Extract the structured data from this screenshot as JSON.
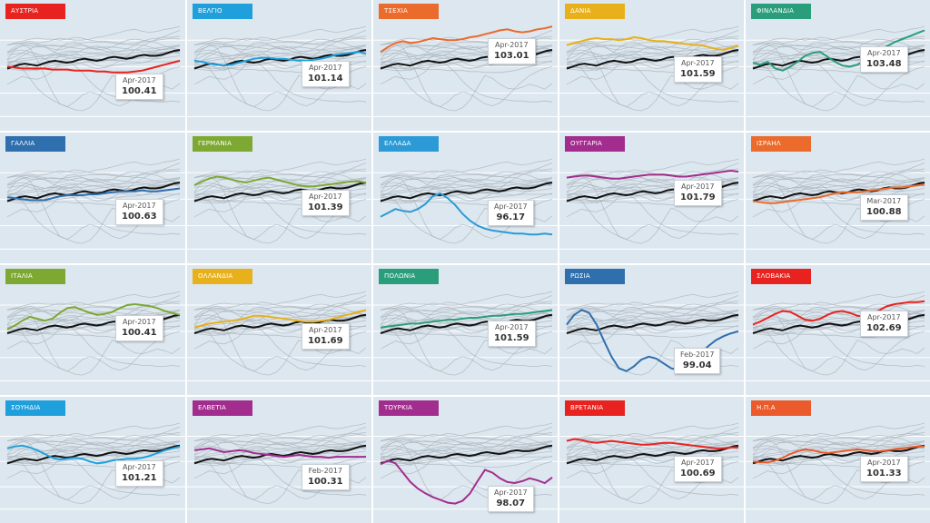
{
  "chart_data": {
    "type": "line",
    "layout": "small-multiples",
    "colors": {
      "background": "#dde7ef",
      "gridline": "#ffffff",
      "reference_line": "#111111",
      "context_lines": "#a9b3bb"
    },
    "grid": true,
    "ylim": [
      94,
      104
    ],
    "reference_series": [
      99.6,
      99.8,
      100.0,
      100.1,
      100.0,
      99.9,
      100.1,
      100.3,
      100.4,
      100.3,
      100.2,
      100.3,
      100.5,
      100.6,
      100.5,
      100.4,
      100.5,
      100.7,
      100.8,
      100.7,
      100.6,
      100.7,
      100.9,
      101.0,
      100.9,
      100.9,
      101.0,
      101.2,
      101.4,
      101.5
    ],
    "panels": [
      {
        "country": "ΑΥΣΤΡΙΑ",
        "color": "#e8231f",
        "tooltip_date": "Apr-2017",
        "tooltip_value": "100.41",
        "values": [
          99.8,
          99.7,
          99.6,
          99.6,
          99.6,
          99.6,
          99.5,
          99.5,
          99.5,
          99.4,
          99.4,
          99.4,
          99.3,
          99.3,
          99.2,
          99.2,
          99.2,
          99.3,
          99.4,
          99.6,
          99.8,
          100.0,
          100.2,
          100.4
        ]
      },
      {
        "country": "ΒΕΛΓΙΟ",
        "color": "#1fa0dc",
        "tooltip_date": "Apr-2017",
        "tooltip_value": "101.14",
        "values": [
          100.4,
          100.3,
          100.1,
          100.0,
          99.9,
          100.0,
          100.2,
          100.4,
          100.6,
          100.7,
          100.7,
          100.6,
          100.6,
          100.5,
          100.4,
          100.4,
          100.5,
          100.6,
          100.8,
          101.0,
          101.1,
          101.2,
          101.3,
          101.1
        ]
      },
      {
        "country": "ΤΣΕΧΙΑ",
        "color": "#ea6b2c",
        "tooltip_date": "Apr-2017",
        "tooltip_value": "103.01",
        "values": [
          101.3,
          101.8,
          102.2,
          102.4,
          102.2,
          102.3,
          102.5,
          102.7,
          102.6,
          102.5,
          102.5,
          102.6,
          102.8,
          102.9,
          103.1,
          103.3,
          103.5,
          103.6,
          103.4,
          103.3,
          103.4,
          103.6,
          103.7,
          103.9
        ]
      },
      {
        "country": "ΔΑΝΙΑ",
        "color": "#e8b11b",
        "tooltip_date": "Apr-2017",
        "tooltip_value": "101.59",
        "values": [
          102.0,
          102.2,
          102.4,
          102.6,
          102.7,
          102.6,
          102.6,
          102.5,
          102.6,
          102.8,
          102.7,
          102.5,
          102.4,
          102.4,
          102.3,
          102.2,
          102.1,
          102.0,
          102.0,
          101.8,
          101.6,
          101.5,
          101.7,
          101.9
        ]
      },
      {
        "country": "ΦΙΝΛΑΝΔΙΑ",
        "color": "#2a9d7a",
        "tooltip_date": "Apr-2017",
        "tooltip_value": "103.48",
        "values": [
          100.2,
          100.0,
          100.3,
          99.6,
          99.4,
          99.8,
          100.3,
          100.9,
          101.2,
          101.3,
          100.8,
          100.3,
          99.9,
          99.8,
          100.0,
          100.4,
          100.9,
          101.5,
          101.9,
          102.3,
          102.6,
          102.9,
          103.2,
          103.5
        ]
      },
      {
        "country": "ΓΑΛΛΙΑ",
        "color": "#2f6fad",
        "tooltip_date": "Apr-2017",
        "tooltip_value": "100.63",
        "values": [
          100.0,
          99.9,
          99.8,
          99.7,
          99.7,
          99.7,
          99.9,
          100.1,
          100.2,
          100.2,
          100.2,
          100.3,
          100.3,
          100.4,
          100.5,
          100.6,
          100.6,
          100.6,
          100.7,
          100.6,
          100.6,
          100.7,
          100.8,
          100.9
        ]
      },
      {
        "country": "ΓΕΡΜΑΝΙΑ",
        "color": "#7da832",
        "tooltip_date": "Apr-2017",
        "tooltip_value": "101.39",
        "values": [
          101.2,
          101.6,
          101.9,
          102.1,
          102.0,
          101.8,
          101.6,
          101.5,
          101.7,
          101.9,
          102.0,
          101.8,
          101.6,
          101.4,
          101.2,
          101.1,
          101.1,
          101.2,
          101.3,
          101.4,
          101.5,
          101.6,
          101.6,
          101.5
        ]
      },
      {
        "country": "ΕΛΛΑΔΑ",
        "color": "#2b9ad6",
        "tooltip_date": "Apr-2017",
        "tooltip_value": "96.17",
        "values": [
          98.0,
          98.4,
          98.8,
          98.6,
          98.5,
          98.8,
          99.3,
          100.1,
          100.4,
          99.9,
          99.2,
          98.3,
          97.6,
          97.1,
          96.8,
          96.6,
          96.5,
          96.4,
          96.3,
          96.3,
          96.2,
          96.2,
          96.3,
          96.2
        ]
      },
      {
        "country": "ΟΥΓΓΑΡΙΑ",
        "color": "#a22d8e",
        "tooltip_date": "Apr-2017",
        "tooltip_value": "101.79",
        "values": [
          102.0,
          102.1,
          102.2,
          102.2,
          102.1,
          102.0,
          101.9,
          101.9,
          102.0,
          102.1,
          102.2,
          102.3,
          102.3,
          102.3,
          102.2,
          102.1,
          102.1,
          102.2,
          102.3,
          102.4,
          102.5,
          102.6,
          102.7,
          102.6
        ]
      },
      {
        "country": "ΙΣΡΑΗΛ",
        "color": "#ea6b2c",
        "tooltip_date": "Mar-2017",
        "tooltip_value": "100.88",
        "values": [
          99.6,
          99.5,
          99.4,
          99.4,
          99.5,
          99.6,
          99.7,
          99.8,
          99.9,
          100.0,
          100.2,
          100.4,
          100.5,
          100.5,
          100.5,
          100.6,
          100.7,
          100.8,
          100.9,
          101.0,
          101.0,
          101.1,
          101.2,
          101.3
        ]
      },
      {
        "country": "ΙΤΑΛΙΑ",
        "color": "#7da832",
        "tooltip_date": "Apr-2017",
        "tooltip_value": "100.41",
        "values": [
          100.0,
          100.4,
          100.9,
          101.3,
          101.1,
          100.9,
          101.1,
          101.7,
          102.2,
          102.3,
          102.0,
          101.7,
          101.5,
          101.6,
          101.8,
          102.2,
          102.5,
          102.6,
          102.5,
          102.4,
          102.2,
          101.9,
          101.7,
          101.5
        ]
      },
      {
        "country": "ΟΛΛΑΝΔΙΑ",
        "color": "#e8b11b",
        "tooltip_date": "Apr-2017",
        "tooltip_value": "101.69",
        "values": [
          100.2,
          100.4,
          100.6,
          100.7,
          100.8,
          100.9,
          101.0,
          101.2,
          101.4,
          101.4,
          101.3,
          101.2,
          101.1,
          101.0,
          100.9,
          100.8,
          100.8,
          100.9,
          101.0,
          101.2,
          101.4,
          101.6,
          101.8,
          102.0
        ]
      },
      {
        "country": "ΠΟΛΩΝΙΑ",
        "color": "#2a9d7a",
        "tooltip_date": "Apr-2017",
        "tooltip_value": "101.59",
        "values": [
          100.2,
          100.3,
          100.4,
          100.5,
          100.6,
          100.6,
          100.7,
          100.8,
          100.9,
          101.0,
          101.0,
          101.1,
          101.2,
          101.2,
          101.3,
          101.4,
          101.4,
          101.5,
          101.6,
          101.6,
          101.7,
          101.8,
          101.9,
          102.0
        ]
      },
      {
        "country": "ΡΩΣΙΑ",
        "color": "#2f6fad",
        "tooltip_date": "Feb-2017",
        "tooltip_value": "99.04",
        "values": [
          100.5,
          101.5,
          102.0,
          101.7,
          100.5,
          98.8,
          97.2,
          96.0,
          95.7,
          96.2,
          96.9,
          97.2,
          97.0,
          96.5,
          96.0,
          95.8,
          96.1,
          96.8,
          97.6,
          98.3,
          98.9,
          99.3,
          99.6,
          99.8
        ]
      },
      {
        "country": "ΣΛΟΒΑΚΙΑ",
        "color": "#e8231f",
        "tooltip_date": "Apr-2017",
        "tooltip_value": "102.69",
        "values": [
          100.5,
          100.8,
          101.2,
          101.6,
          101.9,
          101.8,
          101.4,
          101.0,
          100.9,
          101.1,
          101.5,
          101.8,
          101.9,
          101.7,
          101.4,
          101.3,
          101.6,
          102.0,
          102.4,
          102.6,
          102.7,
          102.8,
          102.8,
          102.9
        ]
      },
      {
        "country": "ΣΟΥΗΔΙΑ",
        "color": "#1fa0dc",
        "tooltip_date": "Apr-2017",
        "tooltip_value": "101.21",
        "values": [
          101.2,
          101.4,
          101.5,
          101.3,
          101.0,
          100.6,
          100.2,
          100.0,
          100.1,
          100.2,
          100.1,
          99.8,
          99.6,
          99.7,
          99.9,
          100.0,
          100.1,
          100.1,
          100.2,
          100.4,
          100.7,
          101.0,
          101.2,
          101.4
        ]
      },
      {
        "country": "ΕΛΒΕΤΙΑ",
        "color": "#a22d8e",
        "tooltip_date": "Feb-2017",
        "tooltip_value": "100.31",
        "values": [
          101.0,
          101.1,
          101.2,
          101.0,
          100.8,
          100.9,
          101.0,
          100.9,
          100.7,
          100.6,
          100.5,
          100.4,
          100.3,
          100.4,
          100.5,
          100.4,
          100.3,
          100.3,
          100.2,
          100.3,
          100.3,
          100.3,
          100.3,
          100.3
        ]
      },
      {
        "country": "ΤΟΥΡΚΙΑ",
        "color": "#a22d8e",
        "tooltip_date": "Apr-2017",
        "tooltip_value": "98.07",
        "values": [
          99.5,
          99.9,
          99.6,
          98.6,
          97.6,
          96.9,
          96.4,
          96.0,
          95.7,
          95.4,
          95.3,
          95.6,
          96.4,
          97.7,
          98.9,
          98.6,
          98.0,
          97.6,
          97.5,
          97.7,
          98.0,
          97.8,
          97.5,
          98.1
        ]
      },
      {
        "country": "ΒΡΕΤΑΝΙΑ",
        "color": "#e8231f",
        "tooltip_date": "Apr-2017",
        "tooltip_value": "100.69",
        "values": [
          102.0,
          102.2,
          102.1,
          101.9,
          101.8,
          101.9,
          102.0,
          101.9,
          101.8,
          101.7,
          101.6,
          101.6,
          101.7,
          101.8,
          101.8,
          101.7,
          101.6,
          101.5,
          101.4,
          101.3,
          101.2,
          101.2,
          101.3,
          101.3
        ]
      },
      {
        "country": "Η.Π.Α",
        "color": "#ea5a2a",
        "tooltip_date": "Apr-2017",
        "tooltip_value": "101.33",
        "values": [
          99.8,
          99.7,
          99.7,
          99.9,
          100.2,
          100.6,
          100.9,
          101.1,
          101.0,
          100.8,
          100.7,
          100.8,
          100.9,
          101.0,
          101.1,
          101.0,
          100.9,
          100.9,
          101.0,
          101.1,
          101.2,
          101.3,
          101.4,
          101.4
        ]
      }
    ]
  }
}
